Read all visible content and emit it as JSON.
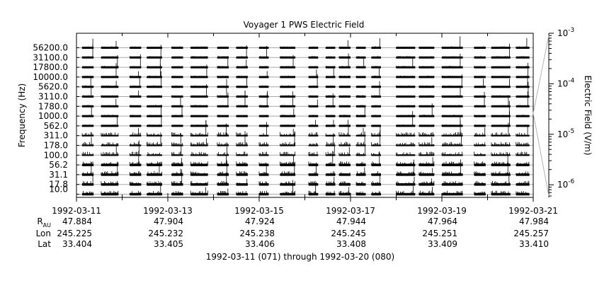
{
  "chart_data": {
    "type": "line",
    "title": "Voyager 1 PWS Electric Field",
    "ylabel": "Frequency (Hz)",
    "y2label": "Electric Field (V/m)",
    "channels": [
      "10.0",
      "17.8",
      "31.1",
      "56.2",
      "100.0",
      "178.0",
      "311.0",
      "562.0",
      "1000.0",
      "1780.0",
      "3110.0",
      "5620.0",
      "10000.0",
      "17800.0",
      "31100.0",
      "56200.0"
    ],
    "x_tick_dates": [
      "1992-03-11",
      "1992-03-13",
      "1992-03-15",
      "1992-03-17",
      "1992-03-19",
      "1992-03-21"
    ],
    "xlim": [
      "1992-03-11",
      "1992-03-21"
    ],
    "y2_ticks": [
      {
        "mant": "10",
        "exp": "-6",
        "value": 1e-06
      },
      {
        "mant": "10",
        "exp": "-5",
        "value": 1e-05
      },
      {
        "mant": "10",
        "exp": "-4",
        "value": 0.0001
      },
      {
        "mant": "10",
        "exp": "-3",
        "value": 0.001
      }
    ],
    "y2_scale": "log",
    "data_segments": [
      [
        "1992-03-11T03:00",
        "1992-03-11T09:00"
      ],
      [
        "1992-03-11T13:00",
        "1992-03-11T22:00"
      ],
      [
        "1992-03-12T04:00",
        "1992-03-12T10:00"
      ],
      [
        "1992-03-12T13:00",
        "1992-03-12T21:00"
      ],
      [
        "1992-03-13T02:00",
        "1992-03-13T08:00"
      ],
      [
        "1992-03-13T12:00",
        "1992-03-13T21:00"
      ],
      [
        "1992-03-14T02:00",
        "1992-03-14T08:00"
      ],
      [
        "1992-03-14T12:00",
        "1992-03-14T18:00"
      ],
      [
        "1992-03-15T00:00",
        "1992-03-15T05:00"
      ],
      [
        "1992-03-15T11:00",
        "1992-03-15T19:00"
      ],
      [
        "1992-03-16T02:00",
        "1992-03-16T07:00"
      ],
      [
        "1992-03-16T11:00",
        "1992-03-16T16:00"
      ],
      [
        "1992-03-16T18:00",
        "1992-03-17T00:00"
      ],
      [
        "1992-03-17T03:00",
        "1992-03-17T08:00"
      ],
      [
        "1992-03-17T11:00",
        "1992-03-17T16:00"
      ],
      [
        "1992-03-18T00:00",
        "1992-03-18T10:00"
      ],
      [
        "1992-03-18T12:00",
        "1992-03-18T20:00"
      ],
      [
        "1992-03-19T00:00",
        "1992-03-19T11:00"
      ],
      [
        "1992-03-19T17:00",
        "1992-03-19T23:00"
      ],
      [
        "1992-03-20T02:00",
        "1992-03-20T12:00"
      ],
      [
        "1992-03-20T15:00",
        "1992-03-20T22:00"
      ]
    ],
    "ephemeris": {
      "rows": [
        {
          "label": "R",
          "sub": "AU",
          "values": [
            "47.884",
            "47.904",
            "47.924",
            "47.944",
            "47.964",
            "47.984"
          ]
        },
        {
          "label": "Lon",
          "sub": "",
          "values": [
            "245.225",
            "245.232",
            "245.238",
            "245.245",
            "245.251",
            "245.257"
          ]
        },
        {
          "label": "Lat",
          "sub": "",
          "values": [
            "33.404",
            "33.405",
            "33.406",
            "33.408",
            "33.409",
            "33.410"
          ]
        }
      ]
    },
    "xlabel": "1992-03-11 (071) through 1992-03-20 (080)",
    "grid": false
  }
}
